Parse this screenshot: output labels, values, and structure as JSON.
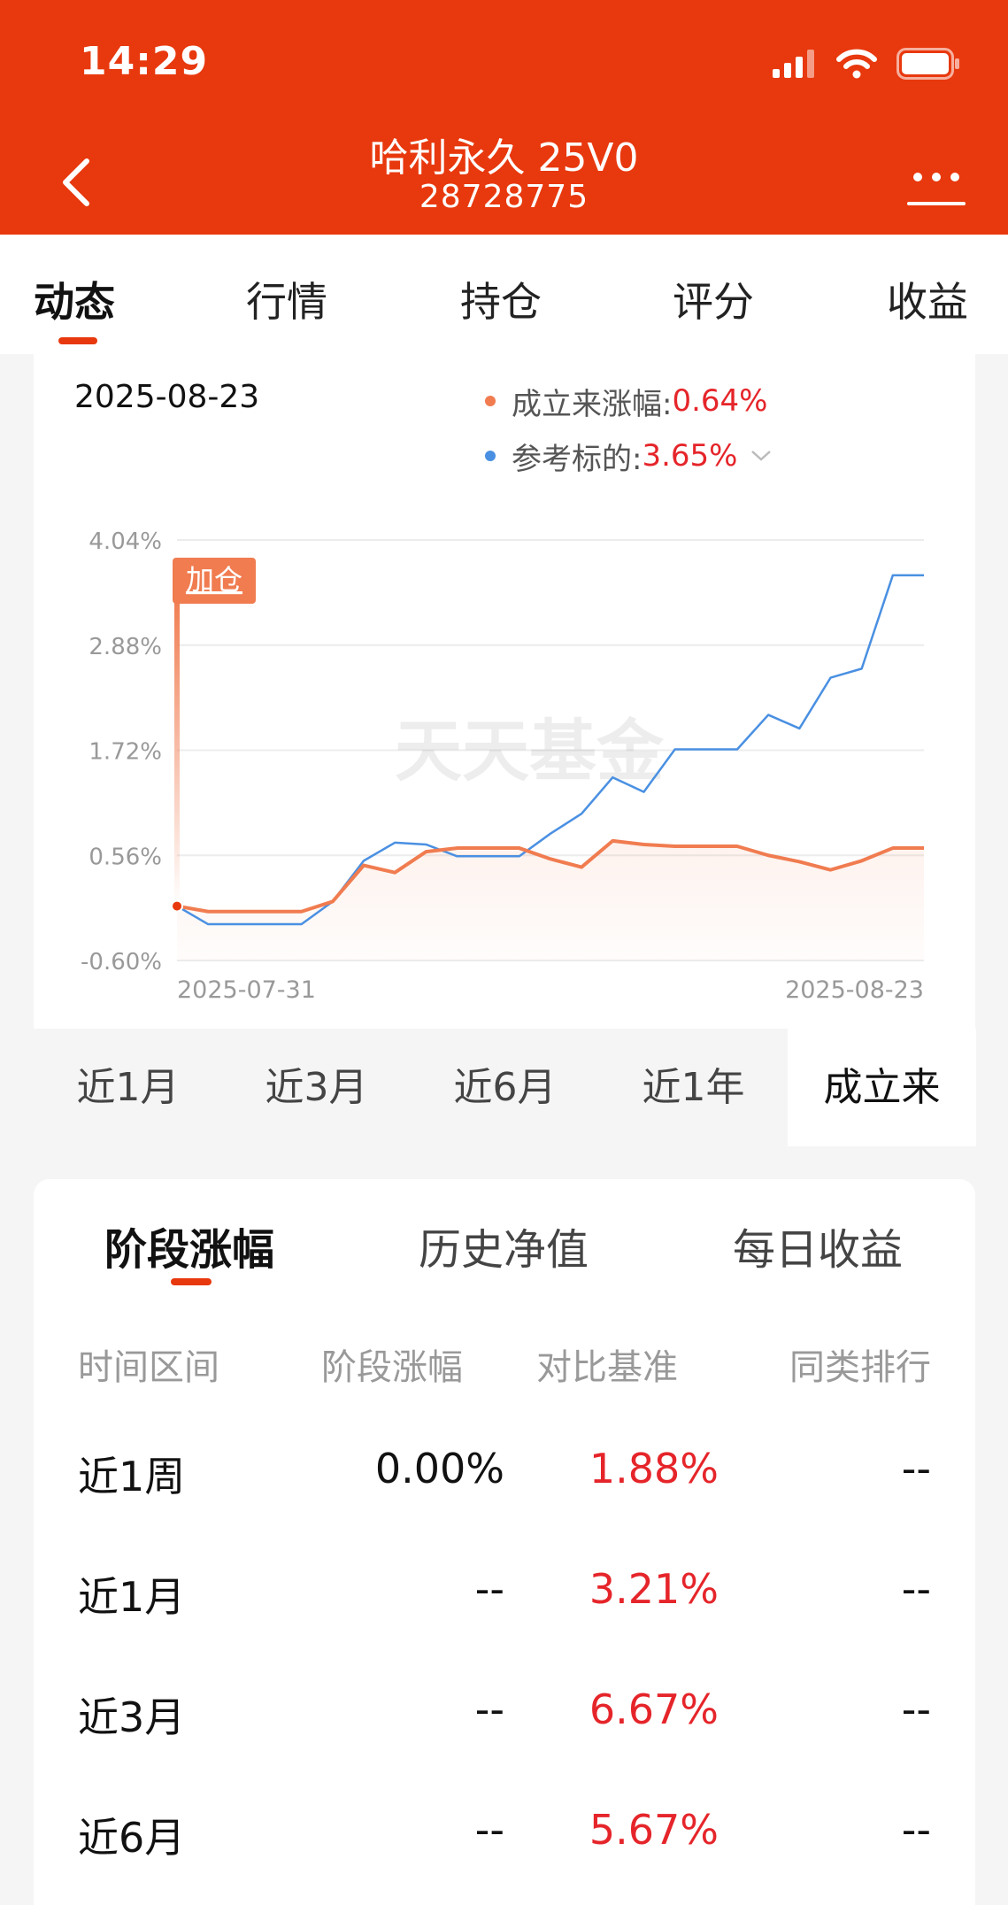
{
  "status": {
    "time": "14:29"
  },
  "header": {
    "title": "哈利永久 25V0",
    "code": "28728775"
  },
  "tabs": [
    "动态",
    "行情",
    "持仓",
    "评分",
    "收益"
  ],
  "chart_panel": {
    "date": "2025-08-23",
    "legend": [
      {
        "label": "成立来涨幅:",
        "value": "0.64%",
        "color": "#f07c50"
      },
      {
        "label": "参考标的:",
        "value": "3.65%",
        "color": "#4a90e2"
      }
    ],
    "marker_label": "加仓",
    "watermark": "天天基金"
  },
  "chart_data": {
    "type": "line",
    "x_start_label": "2025-07-31",
    "x_end_label": "2025-08-23",
    "y_ticks": [
      "4.04%",
      "2.88%",
      "1.72%",
      "0.56%",
      "-0.60%"
    ],
    "ylim": [
      -0.6,
      4.04
    ],
    "series": [
      {
        "name": "成立来涨幅",
        "color": "#f07c50",
        "values": [
          0,
          -0.06,
          -0.06,
          -0.06,
          -0.06,
          0.05,
          0.45,
          0.37,
          0.6,
          0.64,
          0.64,
          0.64,
          0.52,
          0.43,
          0.72,
          0.68,
          0.66,
          0.66,
          0.66,
          0.56,
          0.49,
          0.4,
          0.5,
          0.64,
          0.64
        ]
      },
      {
        "name": "参考标的",
        "color": "#4a90e2",
        "values": [
          0,
          -0.2,
          -0.2,
          -0.2,
          -0.2,
          0.05,
          0.5,
          0.7,
          0.68,
          0.55,
          0.55,
          0.55,
          0.8,
          1.02,
          1.42,
          1.26,
          1.73,
          1.73,
          1.73,
          2.11,
          1.96,
          2.52,
          2.62,
          3.65,
          3.65
        ]
      }
    ]
  },
  "ranges": [
    "近1月",
    "近3月",
    "近6月",
    "近1年",
    "成立来"
  ],
  "perf": {
    "tabs": [
      "阶段涨幅",
      "历史净值",
      "每日收益"
    ],
    "headers": [
      "时间区间",
      "阶段涨幅",
      "对比基准",
      "同类排行"
    ],
    "rows": [
      [
        "近1周",
        "0.00%",
        "1.88%",
        "--"
      ],
      [
        "近1月",
        "--",
        "3.21%",
        "--"
      ],
      [
        "近3月",
        "--",
        "6.67%",
        "--"
      ],
      [
        "近6月",
        "--",
        "5.67%",
        "--"
      ]
    ]
  }
}
